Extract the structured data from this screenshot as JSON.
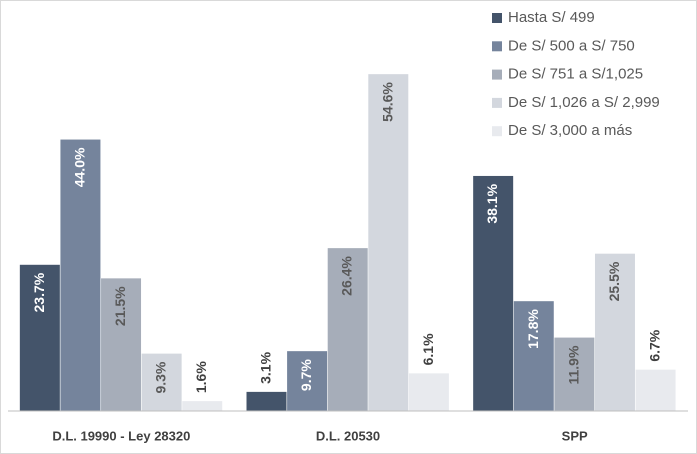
{
  "chart_data": {
    "type": "bar",
    "categories": [
      "D.L. 19990 - Ley 28320",
      "D.L. 20530",
      "SPP"
    ],
    "series": [
      {
        "name": "Hasta S/ 499",
        "color": "#44546a",
        "values": [
          23.7,
          3.1,
          38.1
        ],
        "value_labels": [
          "23.7%",
          "3.1%",
          "38.1%"
        ]
      },
      {
        "name": "De S/ 500 a S/ 750",
        "color": "#75849c",
        "values": [
          44.0,
          9.7,
          17.8
        ],
        "value_labels": [
          "44.0%",
          "9.7%",
          "17.8%"
        ]
      },
      {
        "name": "De S/ 751 a S/1,025",
        "color": "#a6adb9",
        "values": [
          21.5,
          26.4,
          11.9
        ],
        "value_labels": [
          "21.5%",
          "26.4%",
          "11.9%"
        ]
      },
      {
        "name": "De S/ 1,026 a S/ 2,999",
        "color": "#d3d7de",
        "values": [
          9.3,
          54.6,
          25.5
        ],
        "value_labels": [
          "9.3%",
          "54.6%",
          "25.5%"
        ]
      },
      {
        "name": "De S/ 3,000 a más",
        "color": "#e8eaee",
        "values": [
          1.6,
          6.1,
          6.7
        ],
        "value_labels": [
          "1.6%",
          "6.1%",
          "6.7%"
        ]
      }
    ],
    "ylim": [
      0,
      65
    ],
    "legend": "top-right"
  }
}
